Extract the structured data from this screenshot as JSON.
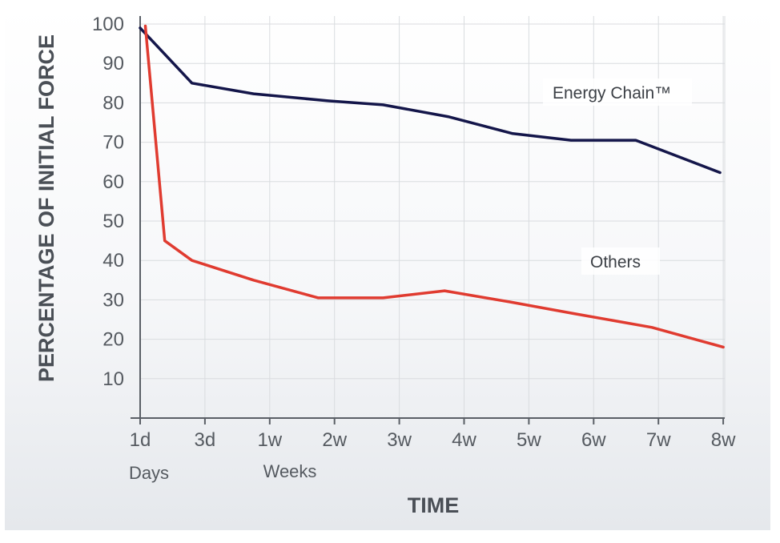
{
  "chart_data": {
    "type": "line",
    "ylabel": "PERCENTAGE OF INITIAL FORCE",
    "xlabel": "TIME",
    "categories": [
      "1d",
      "3d",
      "1w",
      "2w",
      "3w",
      "4w",
      "5w",
      "6w",
      "7w",
      "8w"
    ],
    "x_group_labels": [
      "Days",
      "Weeks"
    ],
    "y_ticks": [
      10,
      20,
      30,
      40,
      50,
      60,
      70,
      80,
      90,
      100
    ],
    "ylim": [
      0,
      100
    ],
    "grid": true,
    "series": [
      {
        "name": "Energy Chain™",
        "color": "#14164a",
        "points": [
          [
            0,
            99
          ],
          [
            0.8,
            85
          ],
          [
            1.75,
            82.3
          ],
          [
            2.9,
            80.5
          ],
          [
            3.75,
            79.5
          ],
          [
            4.75,
            76.5
          ],
          [
            5.75,
            72.2
          ],
          [
            6.65,
            70.5
          ],
          [
            7.65,
            70.5
          ],
          [
            8.95,
            62.3
          ]
        ]
      },
      {
        "name": "Others",
        "color": "#e03b30",
        "points": [
          [
            0.08,
            99.5
          ],
          [
            0.38,
            45
          ],
          [
            0.8,
            40
          ],
          [
            1.75,
            35
          ],
          [
            2.75,
            30.5
          ],
          [
            3.75,
            30.5
          ],
          [
            4.7,
            32.3
          ],
          [
            5.7,
            29.5
          ],
          [
            6.7,
            26.5
          ],
          [
            7.9,
            23
          ],
          [
            9,
            18
          ]
        ]
      }
    ]
  }
}
